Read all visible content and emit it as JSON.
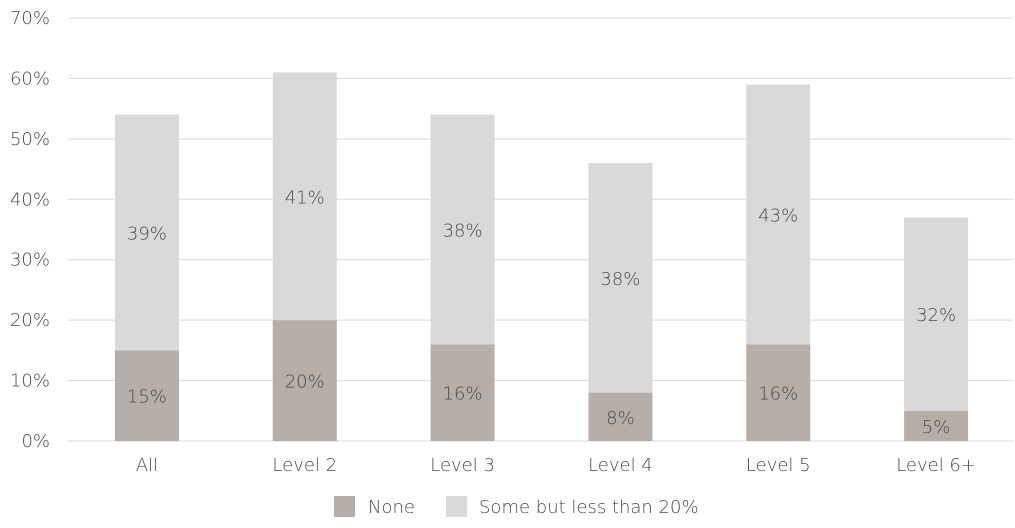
{
  "chart_data": {
    "type": "bar",
    "stacked": true,
    "categories": [
      "All",
      "Level 2",
      "Level 3",
      "Level 4",
      "Level 5",
      "Level 6+"
    ],
    "series": [
      {
        "name": "None",
        "values": [
          15,
          20,
          16,
          8,
          16,
          5
        ],
        "labels": [
          "15%",
          "20%",
          "16%",
          "8%",
          "16%",
          "5%"
        ],
        "color": "#b5aea9"
      },
      {
        "name": "Some but less than 20%",
        "values": [
          39,
          41,
          38,
          38,
          43,
          32
        ],
        "labels": [
          "39%",
          "41%",
          "38%",
          "38%",
          "43%",
          "32%"
        ],
        "color": "#d9d9d9"
      }
    ],
    "ylim": [
      0,
      70
    ],
    "yticks": [
      0,
      10,
      20,
      30,
      40,
      50,
      60,
      70
    ],
    "ytick_labels": [
      "0%",
      "10%",
      "20%",
      "30%",
      "40%",
      "50%",
      "60%",
      "70%"
    ],
    "grid": true,
    "gridline_color": "#d9d9d9",
    "legend_position": "bottom-center",
    "xlabel": "",
    "ylabel": "",
    "title": ""
  }
}
